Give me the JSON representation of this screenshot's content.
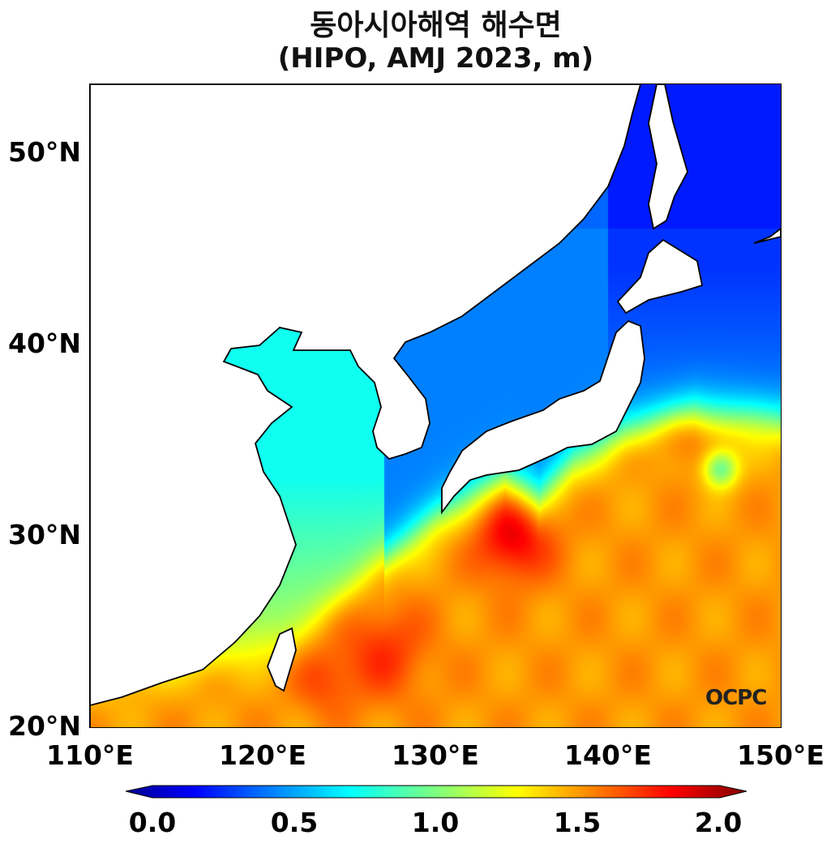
{
  "title": {
    "line1": "동아시아해역 해수면",
    "line2": "(HIPO, AMJ 2023, m)"
  },
  "y_ticks": [
    "50°N",
    "40°N",
    "30°N",
    "20°N"
  ],
  "x_ticks": [
    "110°E",
    "120°E",
    "130°E",
    "140°E",
    "150°E"
  ],
  "colorbar": {
    "min": 0.0,
    "max": 2.0,
    "colormap": "jet",
    "extend": "both",
    "labels": [
      "0.0",
      "0.5",
      "1.0",
      "1.5",
      "2.0"
    ]
  },
  "logo": "OCPC",
  "extent": {
    "lon": [
      110,
      150
    ],
    "lat": [
      20,
      53.5
    ]
  }
}
